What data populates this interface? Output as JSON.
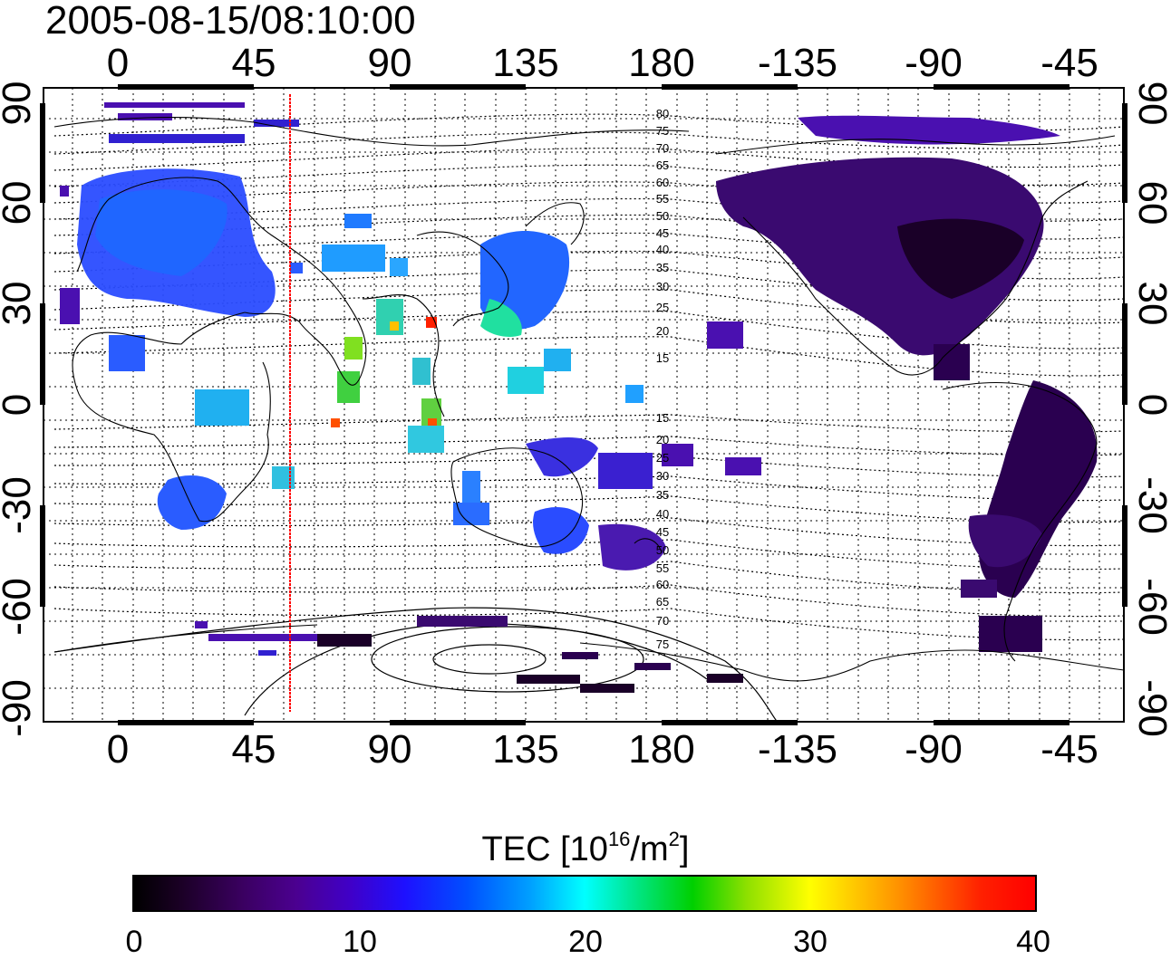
{
  "title": "2005-08-15/08:10:00",
  "top_lon_labels": [
    "0",
    "45",
    "90",
    "135",
    "180",
    "-135",
    "-90",
    "-45"
  ],
  "bottom_lon_labels": [
    "0",
    "45",
    "90",
    "135",
    "180",
    "-135",
    "-90",
    "-45"
  ],
  "left_lat_labels": [
    "90",
    "60",
    "30",
    "0",
    "-30",
    "-60",
    "-90"
  ],
  "right_lat_labels": [
    "90",
    "60",
    "30",
    "0",
    "-30",
    "-60",
    "-90"
  ],
  "contour_labels": [
    "80",
    "75",
    "70",
    "65",
    "60",
    "55",
    "50",
    "45",
    "40",
    "35",
    "30",
    "25",
    "20",
    "15",
    "15",
    "20",
    "25",
    "30",
    "35",
    "40",
    "45",
    "50",
    "55",
    "60",
    "65",
    "70",
    "75"
  ],
  "colorbar": {
    "title": "TEC  [10",
    "title_sup1": "16",
    "title_mid": "/m",
    "title_sup2": "2",
    "title_end": "]",
    "ticks": [
      "0",
      "10",
      "20",
      "30",
      "40"
    ],
    "range": [
      0,
      40
    ]
  },
  "colors": {
    "frame": "#000000",
    "terminator_line": "#ff0000",
    "coast": "#000000"
  }
}
